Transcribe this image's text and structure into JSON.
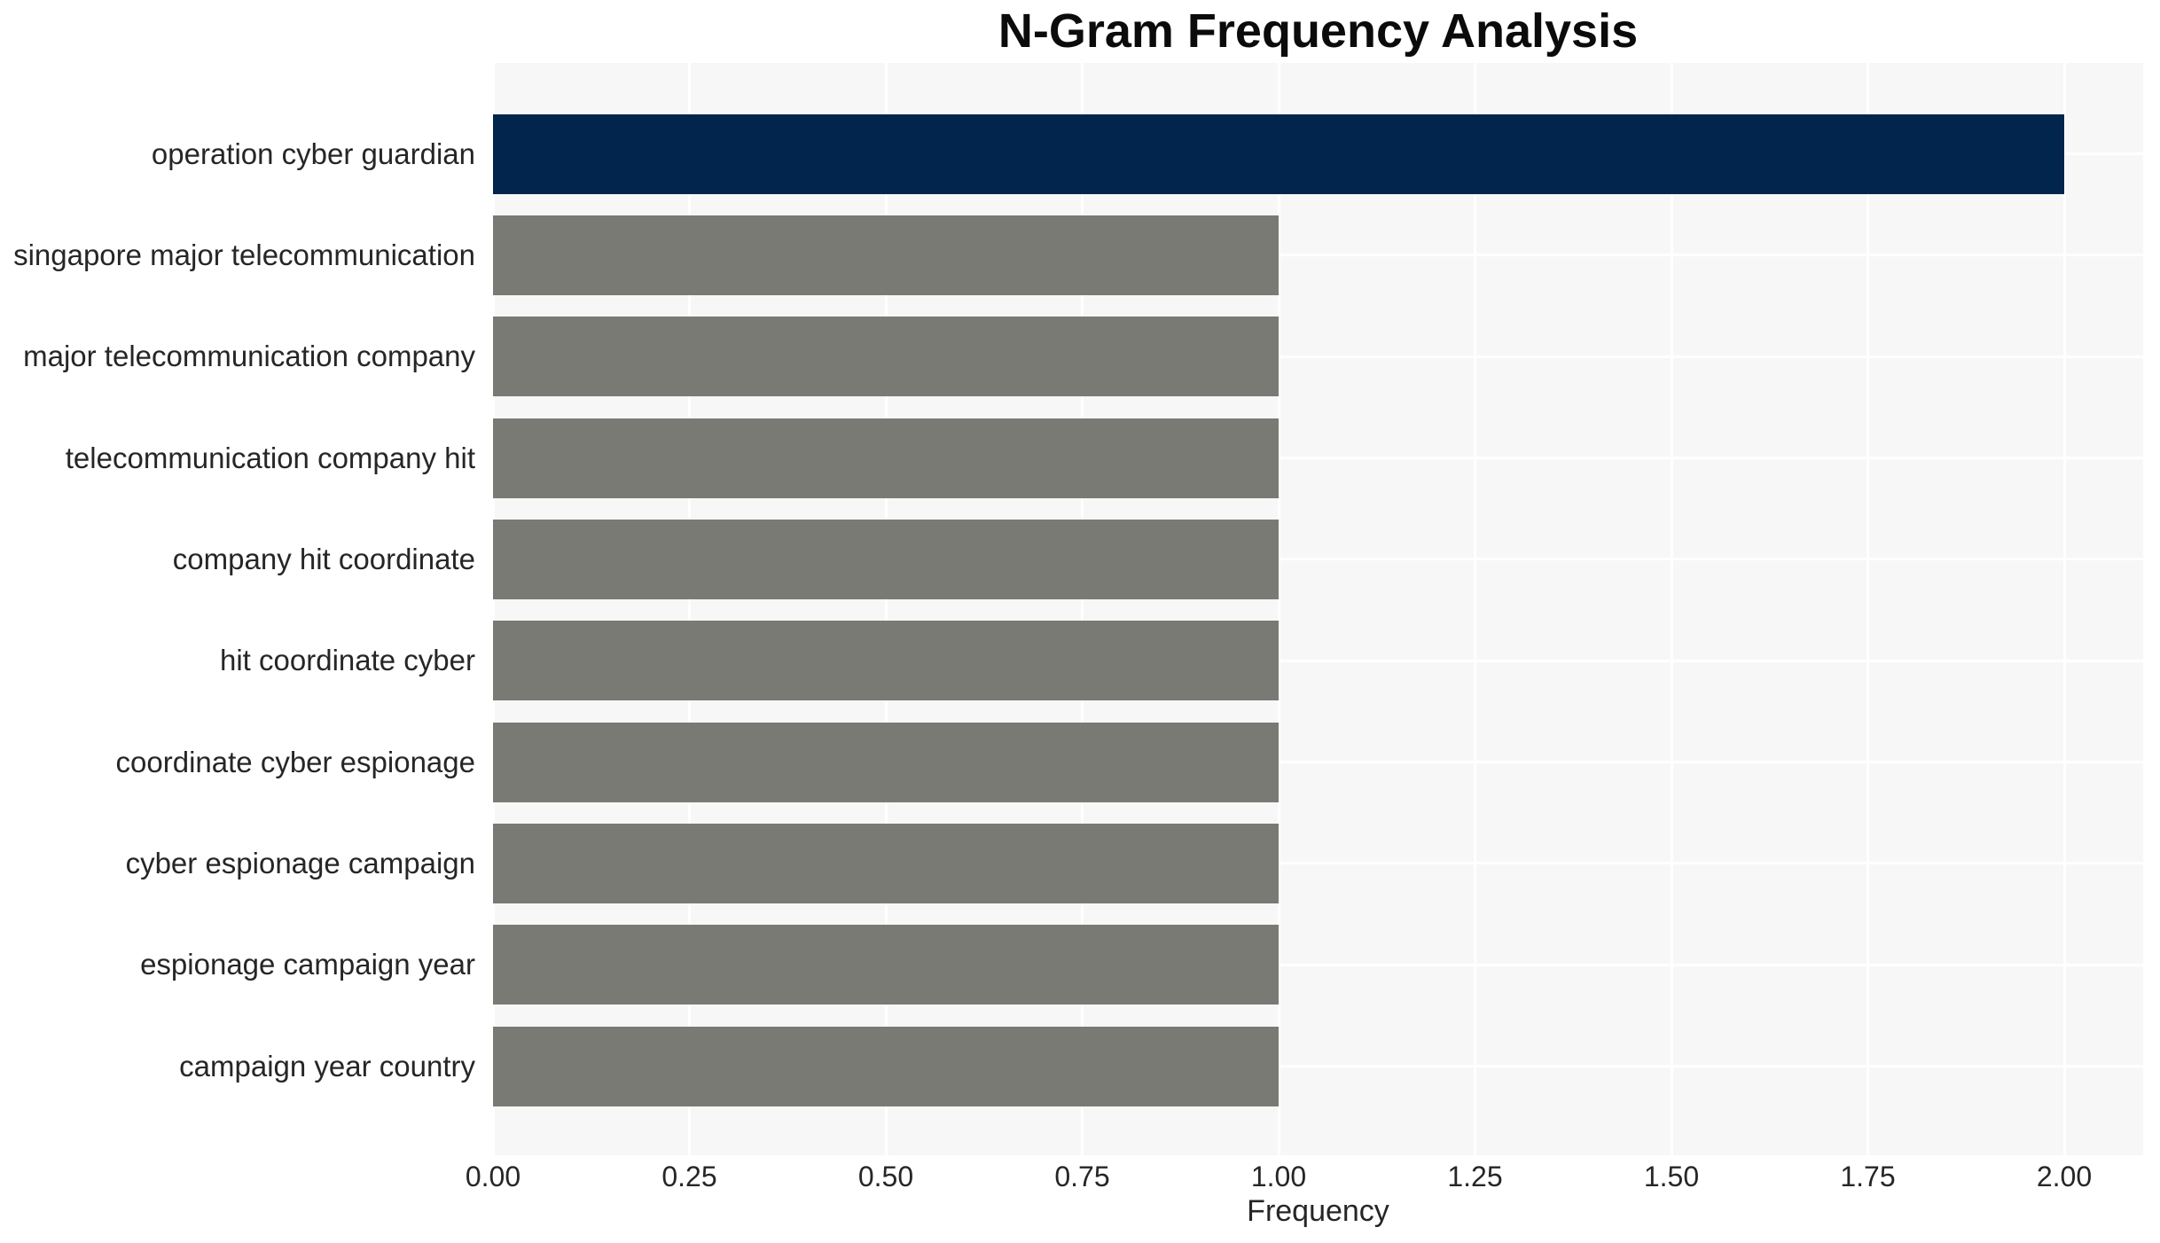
{
  "chart_data": {
    "type": "bar",
    "orientation": "horizontal",
    "title": "N-Gram Frequency Analysis",
    "xlabel": "Frequency",
    "ylabel": "",
    "categories": [
      "operation cyber guardian",
      "singapore major telecommunication",
      "major telecommunication company",
      "telecommunication company hit",
      "company hit coordinate",
      "hit coordinate cyber",
      "coordinate cyber espionage",
      "cyber espionage campaign",
      "espionage campaign year",
      "campaign year country"
    ],
    "values": [
      2,
      1,
      1,
      1,
      1,
      1,
      1,
      1,
      1,
      1
    ],
    "bar_colors": [
      "#02254d",
      "#7a7a75",
      "#7a7a75",
      "#7a7a75",
      "#7a7a75",
      "#7a7a75",
      "#7a7a75",
      "#7a7a75",
      "#7a7a75",
      "#7a7a75"
    ],
    "xlim": [
      0,
      2.1
    ],
    "xticks": [
      0,
      0.25,
      0.5,
      0.75,
      1.0,
      1.25,
      1.5,
      1.75,
      2.0
    ],
    "xtick_labels": [
      "0.00",
      "0.25",
      "0.50",
      "0.75",
      "1.00",
      "1.25",
      "1.50",
      "1.75",
      "2.00"
    ],
    "grid": true,
    "legend": false,
    "colors": {
      "highlight_bar": "#02254d",
      "default_bar": "#7a7a75",
      "plot_background": "#f7f7f7",
      "grid_line": "#ffffff",
      "axis_text": "#262626",
      "title_text": "#0b0b0b",
      "page_background": "#ffffff"
    }
  }
}
